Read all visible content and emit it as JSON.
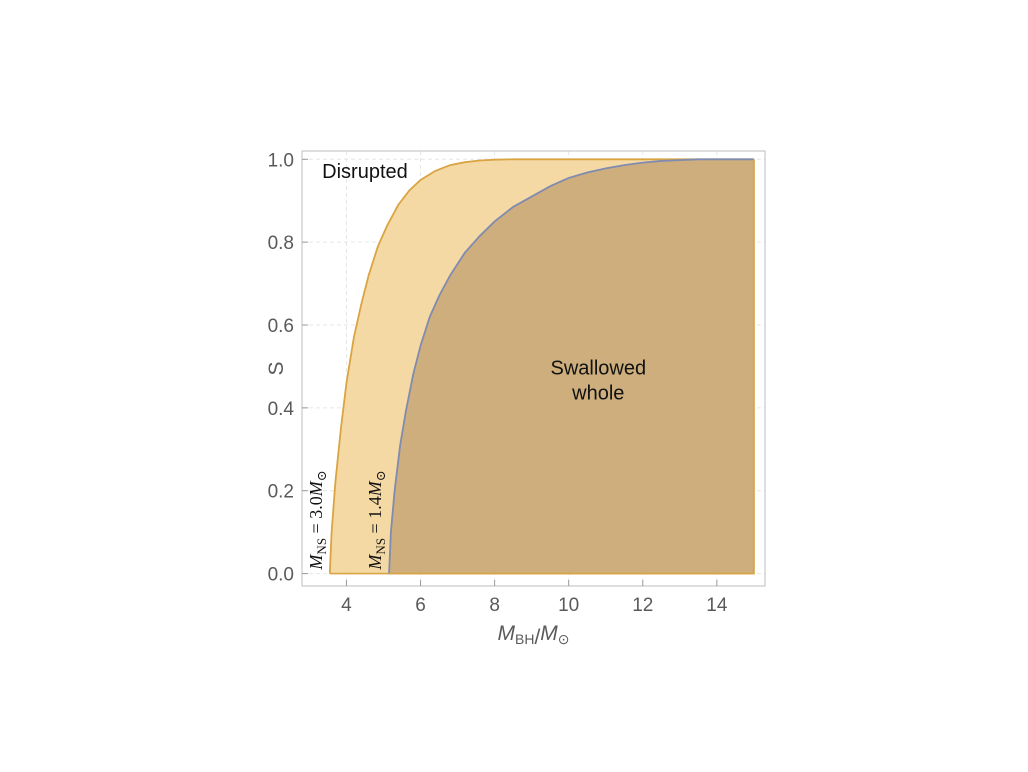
{
  "chart_data": {
    "type": "area",
    "xlim": [
      2.8,
      15.3
    ],
    "ylim": [
      -0.03,
      1.02
    ],
    "x_ticks": [
      4,
      6,
      8,
      10,
      12,
      14
    ],
    "y_ticks": [
      0.0,
      0.2,
      0.4,
      0.6,
      0.8,
      1.0
    ],
    "x_tick_labels": [
      "4",
      "6",
      "8",
      "10",
      "12",
      "14"
    ],
    "y_tick_labels": [
      "0.0",
      "0.2",
      "0.4",
      "0.6",
      "0.8",
      "1.0"
    ],
    "xlabel": {
      "main": "M",
      "sub": "BH",
      "sep": "/",
      "main2": "M",
      "sub2": "⊙"
    },
    "ylabel": "S",
    "grid": true,
    "x_max_region": 15,
    "series": [
      {
        "label": {
          "main": "M",
          "sub": "NS",
          "rest": " = 3.0",
          "main2": "M",
          "sub2": "⊙"
        },
        "color": "#d9a441",
        "fill": "#f5d9a4",
        "x": [
          3.55,
          3.6,
          3.7,
          3.85,
          4.0,
          4.2,
          4.4,
          4.6,
          4.85,
          5.1,
          5.4,
          5.7,
          6.0,
          6.4,
          6.8,
          7.2,
          7.6,
          8.0,
          8.5,
          9.0,
          9.5,
          10.0,
          15.0
        ],
        "y": [
          0.0,
          0.1,
          0.22,
          0.35,
          0.46,
          0.57,
          0.65,
          0.72,
          0.79,
          0.84,
          0.89,
          0.925,
          0.95,
          0.972,
          0.986,
          0.993,
          0.997,
          0.999,
          1.0,
          1.0,
          1.0,
          1.0,
          1.0
        ]
      },
      {
        "label": {
          "main": "M",
          "sub": "NS",
          "rest": " = 1.4",
          "main2": "M",
          "sub2": "⊙"
        },
        "color": "#7f8bb0",
        "fill": "#c9aa78",
        "x": [
          5.15,
          5.2,
          5.3,
          5.45,
          5.6,
          5.8,
          6.0,
          6.25,
          6.5,
          6.8,
          7.2,
          7.6,
          8.0,
          8.5,
          9.0,
          9.5,
          10.0,
          10.5,
          11.0,
          11.5,
          12.0,
          12.5,
          13.0,
          13.5,
          14.0,
          15.0
        ],
        "y": [
          0.0,
          0.1,
          0.2,
          0.31,
          0.39,
          0.48,
          0.55,
          0.62,
          0.67,
          0.72,
          0.775,
          0.815,
          0.85,
          0.885,
          0.91,
          0.935,
          0.955,
          0.968,
          0.978,
          0.986,
          0.992,
          0.996,
          0.998,
          1.0,
          1.0,
          1.0
        ]
      }
    ],
    "annotations": [
      {
        "text": "Disrupted",
        "x": 4.5,
        "y": 0.955
      },
      {
        "text": "Swallowed",
        "x": 10.8,
        "y": 0.48
      },
      {
        "text": "whole",
        "x": 10.8,
        "y": 0.42
      }
    ]
  }
}
